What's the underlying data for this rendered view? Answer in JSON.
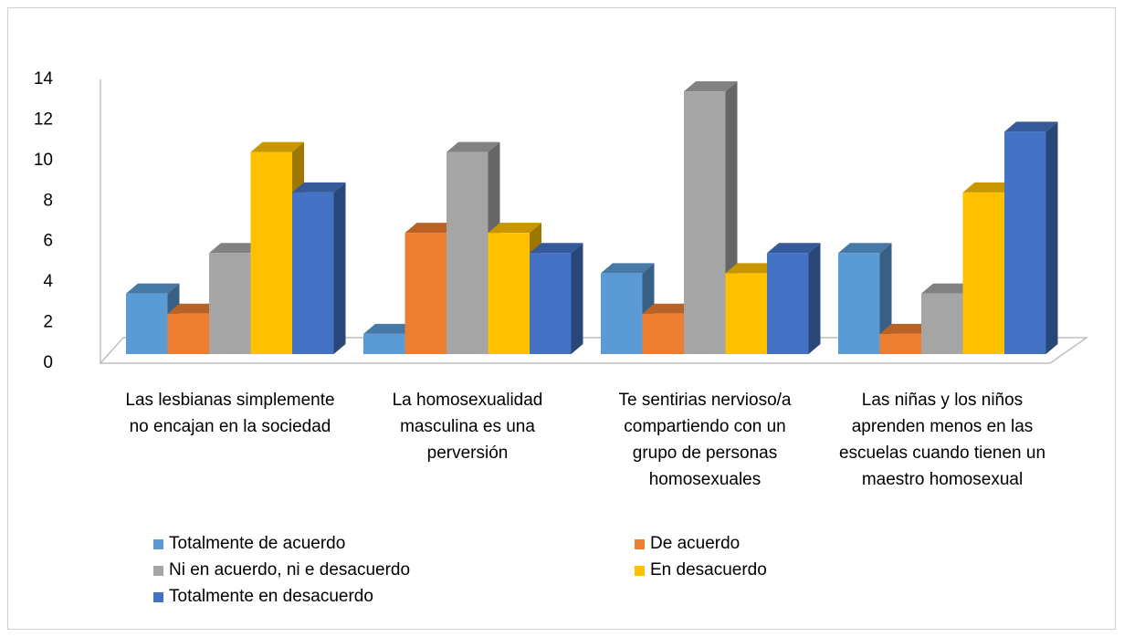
{
  "chart_data": {
    "type": "bar3d",
    "categories": [
      "Las lesbianas simplemente no encajan en la sociedad",
      "La homosexualidad masculina es una perversión",
      "Te sentirias nervioso/a compartiendo con un grupo de personas homosexuales",
      "Las niñas y los niños aprenden menos en las escuelas cuando tienen un maestro homosexual"
    ],
    "series": [
      {
        "name": "Totalmente de acuerdo",
        "color": "#5B9BD5",
        "values": [
          3,
          1,
          4,
          5
        ]
      },
      {
        "name": "De acuerdo",
        "color": "#ED7D31",
        "values": [
          2,
          6,
          2,
          1
        ]
      },
      {
        "name": "Ni en acuerdo, ni e desacuerdo",
        "color": "#A5A5A5",
        "values": [
          5,
          10,
          13,
          3
        ]
      },
      {
        "name": "En desacuerdo",
        "color": "#FFC000",
        "values": [
          10,
          6,
          4,
          8
        ]
      },
      {
        "name": "Totalmente en desacuerdo",
        "color": "#4472C4",
        "values": [
          8,
          5,
          5,
          11
        ]
      }
    ],
    "ylim": [
      0,
      14
    ],
    "yticks": [
      0,
      2,
      4,
      6,
      8,
      10,
      12,
      14
    ],
    "legend": "bottom"
  }
}
